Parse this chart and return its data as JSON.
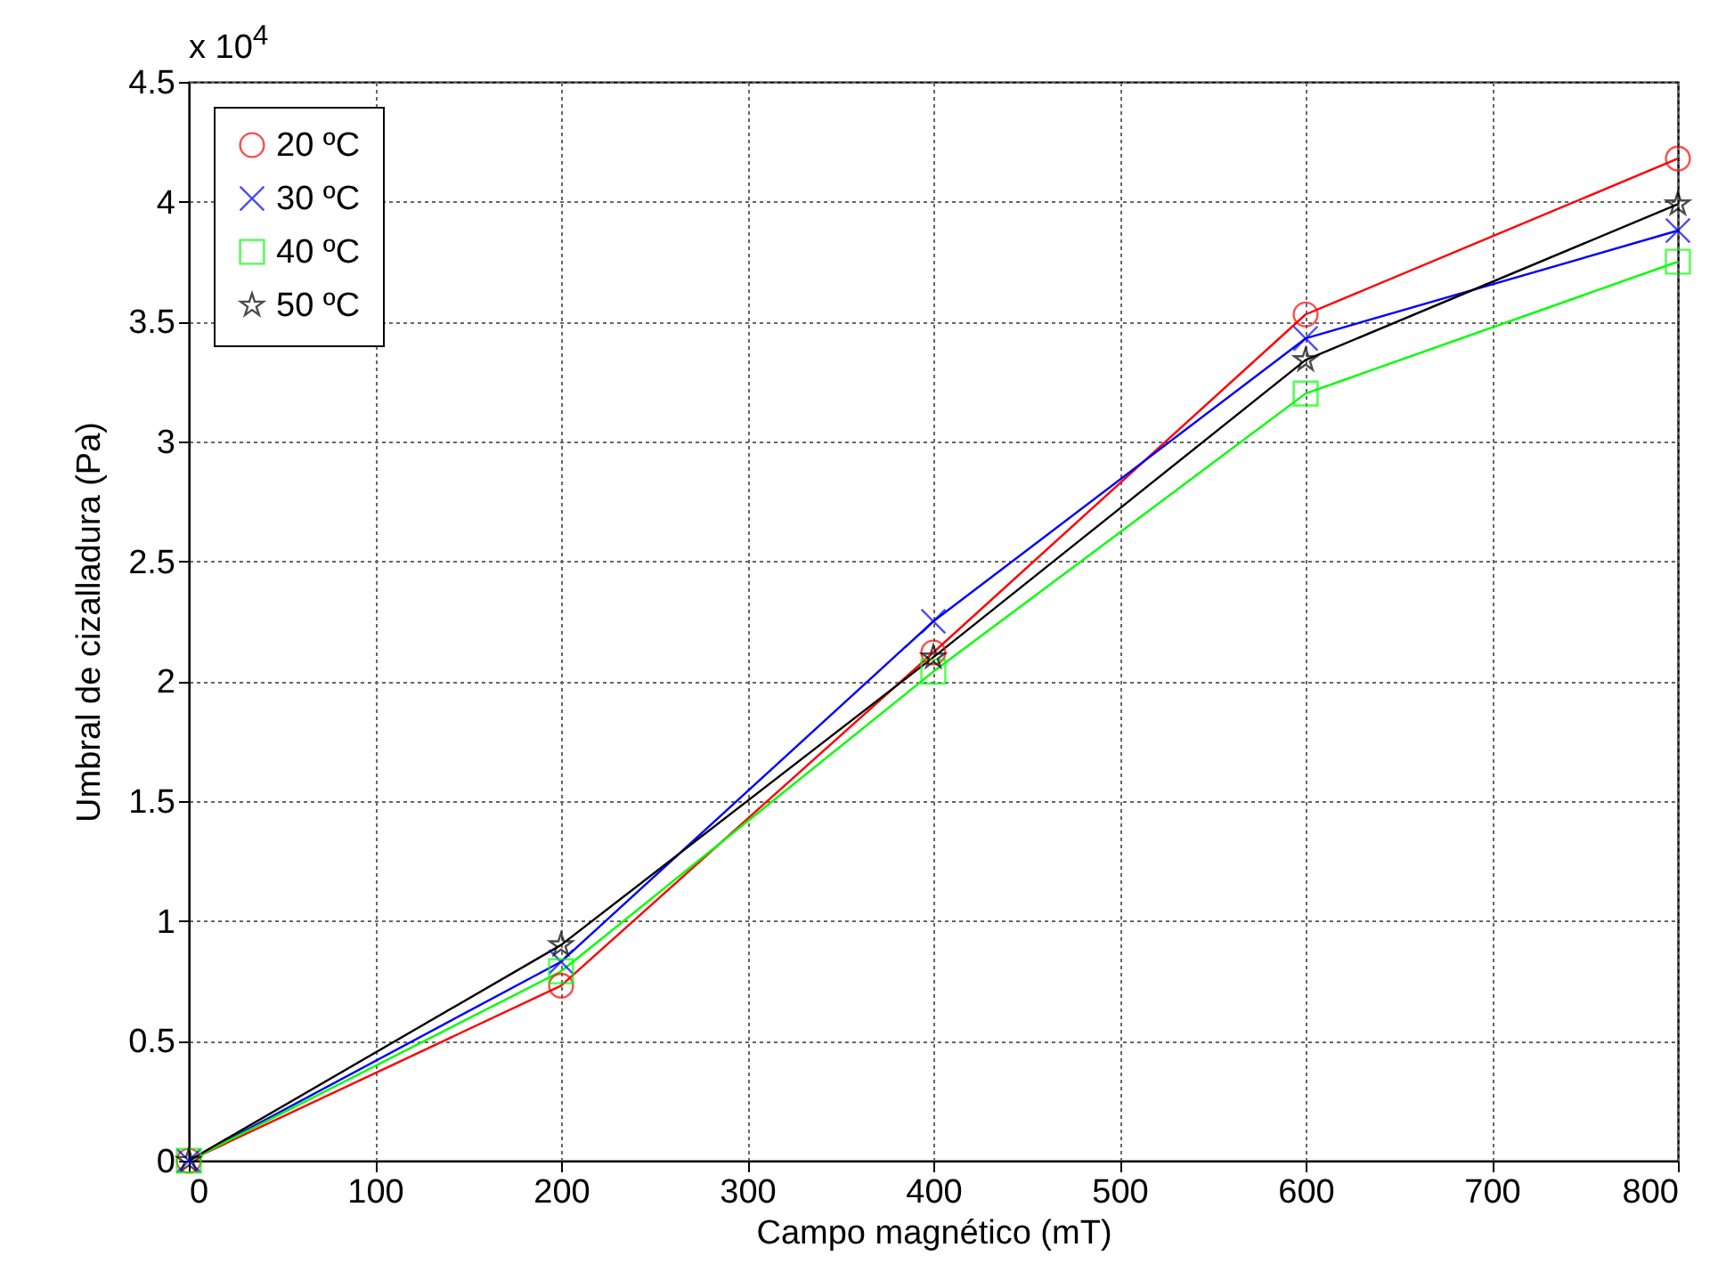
{
  "chart_data": {
    "type": "line",
    "xlabel": "Campo magnético (mT)",
    "ylabel": "Umbral de cizalladura (Pa)",
    "annotations": [
      "x 10$^{4}$"
    ],
    "x": [
      0,
      200,
      400,
      600,
      800
    ],
    "series": [
      {
        "name": "20 ºC",
        "color": "#ff0000",
        "marker": "circle",
        "values": [
          0,
          0.73,
          2.12,
          3.53,
          4.18
        ]
      },
      {
        "name": "30 ºC",
        "color": "#0000ff",
        "marker": "cross",
        "values": [
          0,
          0.83,
          2.25,
          3.43,
          3.88
        ]
      },
      {
        "name": "40 ºC",
        "color": "#00ff00",
        "marker": "square",
        "values": [
          0,
          0.79,
          2.04,
          3.2,
          3.75
        ]
      },
      {
        "name": "50 ºC",
        "color": "#000000",
        "marker": "star",
        "values": [
          0,
          0.9,
          2.1,
          3.34,
          3.99
        ]
      }
    ],
    "xlim": [
      0,
      800
    ],
    "xticks": [
      0,
      100,
      200,
      300,
      400,
      500,
      600,
      700,
      800
    ],
    "ylim": [
      0,
      4.5
    ],
    "yticks": [
      0,
      0.5,
      1,
      1.5,
      2,
      2.5,
      3,
      3.5,
      4,
      4.5
    ],
    "grid": true,
    "legend": "top left"
  }
}
